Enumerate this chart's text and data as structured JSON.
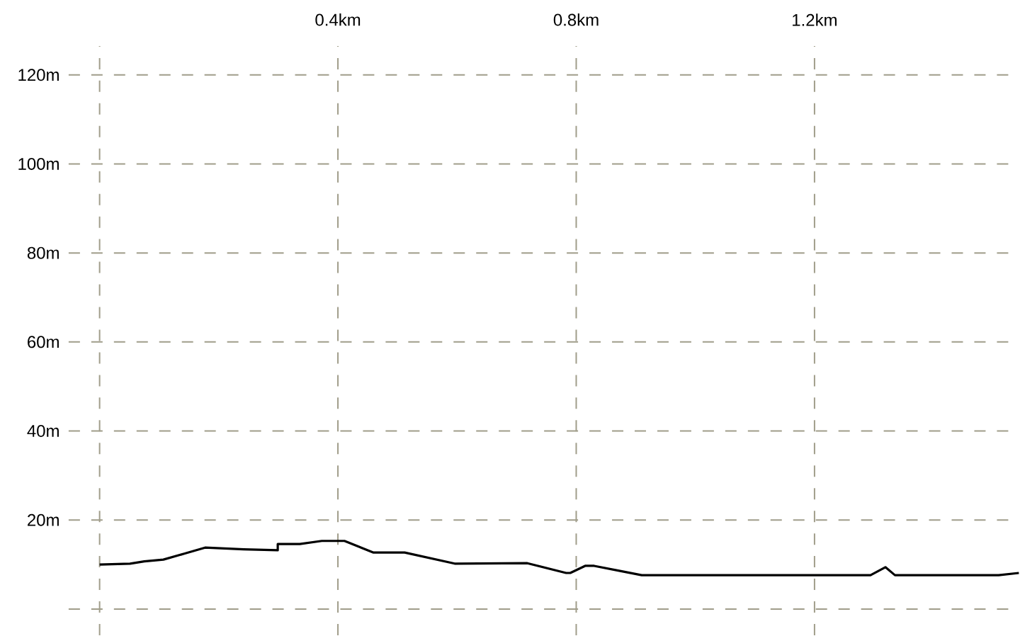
{
  "chart_data": {
    "type": "line",
    "x": [
      0,
      0.051,
      0.075,
      0.107,
      0.141,
      0.177,
      0.242,
      0.299,
      0.299,
      0.336,
      0.373,
      0.411,
      0.459,
      0.512,
      0.596,
      0.718,
      0.783,
      0.79,
      0.815,
      0.83,
      0.872,
      0.91,
      1.294,
      1.319,
      1.335,
      1.509,
      1.543
    ],
    "values": [
      10.0,
      10.2,
      10.7,
      11.1,
      12.4,
      13.8,
      13.4,
      13.2,
      14.6,
      14.6,
      15.3,
      15.3,
      12.7,
      12.7,
      10.2,
      10.3,
      8.1,
      8.1,
      9.7,
      9.7,
      8.6,
      7.6,
      7.6,
      9.4,
      7.6,
      7.6,
      8.1
    ],
    "color": "#000000",
    "xlim": [
      -0.052,
      1.543
    ],
    "ylim": [
      -5.9,
      126.5
    ],
    "xticks": [
      {
        "value": 0,
        "label": null
      },
      {
        "value": 0.4,
        "label": "0.4km"
      },
      {
        "value": 0.8,
        "label": "0.8km"
      },
      {
        "value": 1.2,
        "label": "1.2km"
      }
    ],
    "yticks": [
      {
        "value": 0,
        "label": null
      },
      {
        "value": 20,
        "label": "20m"
      },
      {
        "value": 40,
        "label": "40m"
      },
      {
        "value": 60,
        "label": "60m"
      },
      {
        "value": 80,
        "label": "80m"
      },
      {
        "value": 100,
        "label": "100m"
      },
      {
        "value": 120,
        "label": "120m"
      }
    ],
    "grid": true
  }
}
